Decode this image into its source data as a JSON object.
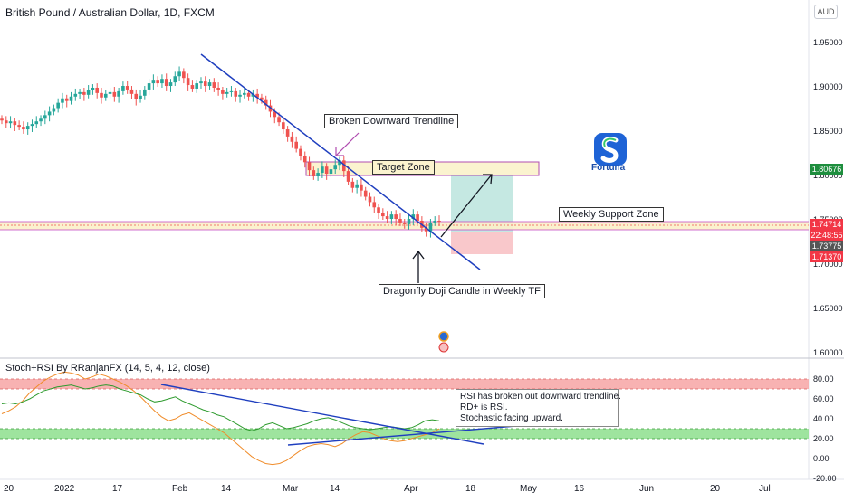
{
  "header": {
    "title": "British Pound / Australian Dollar, 1D, FXCM",
    "currency_badge": "AUD"
  },
  "indicator": {
    "title": "Stoch+RSI By RRanjanFX (14, 5, 4, 12, close)"
  },
  "annotations": {
    "broken_trendline": "Broken Downward Trendline",
    "target_zone": "Target Zone",
    "weekly_support": "Weekly Support Zone",
    "dragonfly": "Dragonfly Doji Candle in Weekly TF",
    "rsi_note": [
      "RSI has broken out downward trendline.",
      "RD+ is RSI.",
      "Stochastic facing upward."
    ]
  },
  "logo": {
    "text": "Fortuna"
  },
  "price_tags": [
    {
      "value": "1.80676",
      "color": "#1e8e3e"
    },
    {
      "value": "1.74714",
      "color": "#f23645"
    },
    {
      "value": "22:48:55",
      "color": "#f23645"
    },
    {
      "value": "1.73775",
      "color": "#555555"
    },
    {
      "value": "1.71370",
      "color": "#f23645"
    }
  ],
  "colors": {
    "up": "#26a69a",
    "down": "#ef5350",
    "trendline": "#1f3fbf",
    "rsi": "#2e9b2e",
    "stoch": "#f08c2a"
  },
  "chart_data": [
    {
      "type": "candlestick",
      "title": "British Pound / Australian Dollar, 1D, FXCM",
      "ylim": [
        1.6,
        1.97
      ],
      "y_ticks": [
        "1.95000",
        "1.90000",
        "1.85000",
        "1.80000",
        "1.75000",
        "1.70000",
        "1.65000",
        "1.60000"
      ],
      "y_tick_values": [
        1.95,
        1.9,
        1.85,
        1.8,
        1.75,
        1.7,
        1.65,
        1.6
      ],
      "x_ticks": [
        "20",
        "2022",
        "17",
        "Feb",
        "14",
        "Mar",
        "14",
        "Apr",
        "18",
        "May",
        "16",
        "Jun",
        "20",
        "Jul"
      ],
      "closes": [
        1.862,
        1.859,
        1.861,
        1.857,
        1.855,
        1.852,
        1.856,
        1.858,
        1.861,
        1.864,
        1.868,
        1.872,
        1.876,
        1.882,
        1.887,
        1.884,
        1.889,
        1.892,
        1.894,
        1.891,
        1.896,
        1.899,
        1.893,
        1.888,
        1.892,
        1.894,
        1.889,
        1.895,
        1.901,
        1.897,
        1.892,
        1.886,
        1.89,
        1.897,
        1.904,
        1.908,
        1.904,
        1.909,
        1.901,
        1.905,
        1.912,
        1.917,
        1.91,
        1.902,
        1.898,
        1.904,
        1.906,
        1.901,
        1.905,
        1.899,
        1.896,
        1.892,
        1.894,
        1.895,
        1.889,
        1.891,
        1.893,
        1.889,
        1.892,
        1.888,
        1.885,
        1.879,
        1.872,
        1.866,
        1.86,
        1.852,
        1.844,
        1.838,
        1.83,
        1.822,
        1.815,
        1.806,
        1.799,
        1.803,
        1.81,
        1.802,
        1.807,
        1.812,
        1.817,
        1.805,
        1.793,
        1.786,
        1.79,
        1.783,
        1.776,
        1.77,
        1.764,
        1.758,
        1.754,
        1.751,
        1.756,
        1.751,
        1.747,
        1.745,
        1.751,
        1.756,
        1.749,
        1.741,
        1.737,
        1.747,
        1.749,
        1.748
      ],
      "stoch": [
        45,
        48,
        52,
        58,
        66,
        72,
        78,
        82,
        85,
        87,
        86,
        84,
        80,
        82,
        85,
        83,
        80,
        77,
        73,
        68,
        62,
        55,
        48,
        42,
        38,
        40,
        44,
        46,
        42,
        38,
        34,
        30,
        26,
        20,
        14,
        8,
        2,
        -2,
        -5,
        -6,
        -5,
        -2,
        3,
        8,
        12,
        14,
        15,
        14,
        12,
        15,
        20,
        24,
        27,
        26,
        23,
        20,
        18,
        17,
        18,
        20,
        22,
        24,
        26,
        30
      ],
      "rsi": [
        55,
        56,
        55,
        57,
        60,
        64,
        68,
        70,
        72,
        73,
        74,
        72,
        70,
        71,
        73,
        74,
        73,
        70,
        68,
        66,
        64,
        60,
        57,
        58,
        60,
        62,
        58,
        55,
        52,
        49,
        47,
        44,
        42,
        38,
        34,
        30,
        28,
        30,
        34,
        36,
        33,
        30,
        31,
        33,
        35,
        38,
        40,
        41,
        39,
        36,
        33,
        31,
        30,
        29,
        30,
        31,
        32,
        31,
        30,
        31,
        34,
        38,
        39,
        38
      ],
      "rsi_y_ticks": [
        "80.00",
        "60.00",
        "40.00",
        "20.00",
        "0.00",
        "-20.00"
      ],
      "rsi_y_tick_values": [
        80,
        60,
        40,
        20,
        0,
        -20
      ]
    }
  ]
}
